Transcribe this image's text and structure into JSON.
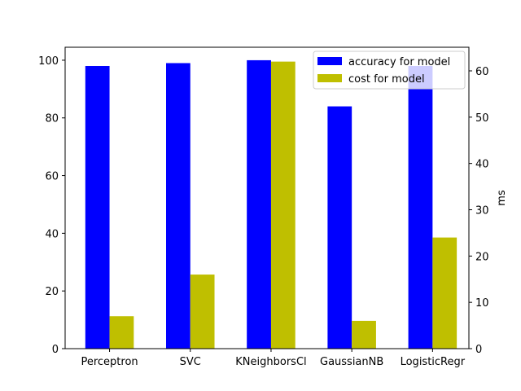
{
  "chart_data": {
    "type": "bar",
    "categories": [
      "Perceptron",
      "SVC",
      "KNeighborsCl",
      "GaussianNB",
      "LogisticRegr"
    ],
    "series": [
      {
        "name": "accuracy for model",
        "axis": "left",
        "color": "#0000ff",
        "values": [
          98,
          99,
          100,
          84,
          98
        ]
      },
      {
        "name": "cost for model",
        "axis": "right",
        "color": "#bfbf00",
        "values": [
          7,
          16,
          62,
          6,
          24
        ]
      }
    ],
    "y_left": {
      "label": "",
      "ylim": [
        0,
        104.5
      ],
      "ticks": [
        0,
        20,
        40,
        60,
        80,
        100
      ]
    },
    "y_right": {
      "label": "ms",
      "ylim": [
        0,
        65.1
      ],
      "ticks": [
        0,
        10,
        20,
        30,
        40,
        50,
        60
      ]
    },
    "title": "",
    "xlabel": "",
    "grid": false,
    "legend_position": "top-right"
  }
}
